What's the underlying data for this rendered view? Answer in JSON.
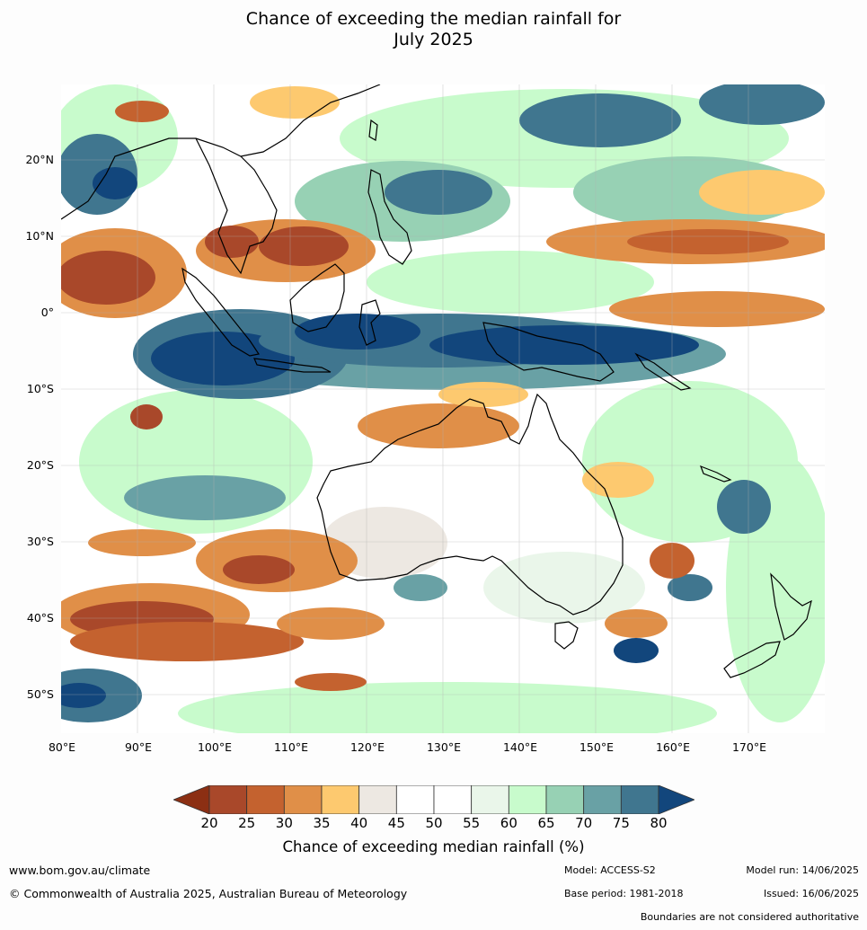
{
  "title_line1": "Chance of exceeding the median rainfall for",
  "title_line2": "July 2025",
  "map": {
    "lon_ticks": [
      "80°E",
      "90°E",
      "100°E",
      "110°E",
      "120°E",
      "130°E",
      "140°E",
      "150°E",
      "160°E",
      "170°E"
    ],
    "lat_ticks": [
      "20°N",
      "10°N",
      "0°",
      "10°S",
      "20°S",
      "30°S",
      "40°S",
      "50°S"
    ],
    "regions_shown": [
      "Maritime Continent",
      "Australia",
      "New Zealand",
      "Indian Ocean",
      "Pacific Ocean"
    ]
  },
  "legend": {
    "ticks": [
      "20",
      "25",
      "30",
      "35",
      "40",
      "45",
      "50",
      "55",
      "60",
      "65",
      "70",
      "75",
      "80"
    ],
    "colors": [
      "#8c2f13",
      "#a9482a",
      "#c4622f",
      "#e08f48",
      "#fdc96f",
      "#ede8e2",
      "#ffffff",
      "#ffffff",
      "#eaf6ea",
      "#c8fbcc",
      "#97d1b4",
      "#69a1a5",
      "#40768f",
      "#12467c"
    ],
    "label": "Chance of exceeding median rainfall (%)"
  },
  "footer": {
    "website": "www.bom.gov.au/climate",
    "copyright": "© Commonwealth of Australia 2025, Australian Bureau of Meteorology",
    "model": "Model: ACCESS-S2",
    "base_period": "Base period: 1981-2018",
    "model_run": "Model run: 14/06/2025",
    "issued": "Issued: 16/06/2025",
    "disclaimer": "Boundaries are not considered authoritative"
  }
}
